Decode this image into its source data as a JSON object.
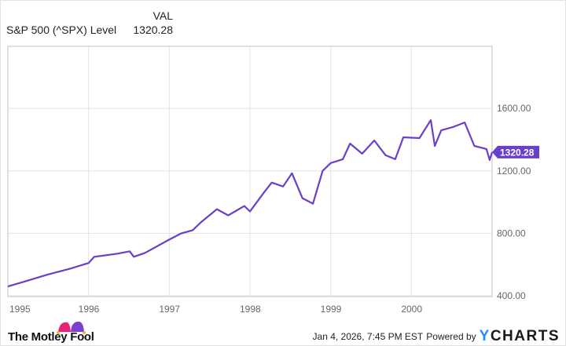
{
  "legend": {
    "header": "VAL",
    "series_name": "S&P 500 (^SPX) Level",
    "series_value": "1320.28"
  },
  "last_value_badge": "1320.28",
  "footer": {
    "brand": "The Motley Fool",
    "timestamp": "Jan 4, 2026, 7:45 PM EST",
    "powered_by": "Powered by",
    "provider": "CHARTS",
    "provider_prefix": "Y"
  },
  "colors": {
    "line": "#6a3fc9",
    "badge": "#6a3fc9",
    "grid": "#e3e3e3",
    "axis_text": "#666666",
    "jester_pink": "#e8207a",
    "jester_purple": "#7b3fd1",
    "ycharts_blue": "#1e90ff"
  },
  "chart_data": {
    "type": "line",
    "title": "S&P 500 (^SPX) Level",
    "xlabel": "",
    "ylabel": "",
    "x_ticks": [
      "1995",
      "1996",
      "1997",
      "1998",
      "1999",
      "2000"
    ],
    "y_ticks": [
      "400.00",
      "800.00",
      "1200.00",
      "1600.00"
    ],
    "ylim": [
      400,
      1900
    ],
    "xlim": [
      1995.0,
      2001.0
    ],
    "grid": true,
    "legend_position": "top-left",
    "series": [
      {
        "name": "S&P 500 (^SPX) Level",
        "x": [
          1995.0,
          1995.2,
          1995.49,
          1995.78,
          1996.0,
          1996.07,
          1996.36,
          1996.51,
          1996.56,
          1996.7,
          1997.0,
          1997.15,
          1997.29,
          1997.39,
          1997.59,
          1997.73,
          1997.93,
          1998.0,
          1998.17,
          1998.27,
          1998.41,
          1998.52,
          1998.65,
          1998.78,
          1998.9,
          1999.0,
          1999.15,
          1999.24,
          1999.39,
          1999.54,
          1999.68,
          1999.8,
          1999.9,
          2000.1,
          2000.24,
          2000.29,
          2000.37,
          2000.51,
          2000.66,
          2000.78,
          2000.93,
          2000.97,
          2001.0
        ],
        "values": [
          460,
          490,
          535,
          575,
          610,
          650,
          670,
          685,
          650,
          675,
          760,
          800,
          820,
          870,
          955,
          915,
          975,
          940,
          1060,
          1125,
          1100,
          1185,
          1025,
          990,
          1200,
          1250,
          1275,
          1375,
          1310,
          1395,
          1300,
          1275,
          1415,
          1410,
          1525,
          1360,
          1460,
          1480,
          1510,
          1360,
          1340,
          1270,
          1320.28
        ]
      }
    ]
  }
}
